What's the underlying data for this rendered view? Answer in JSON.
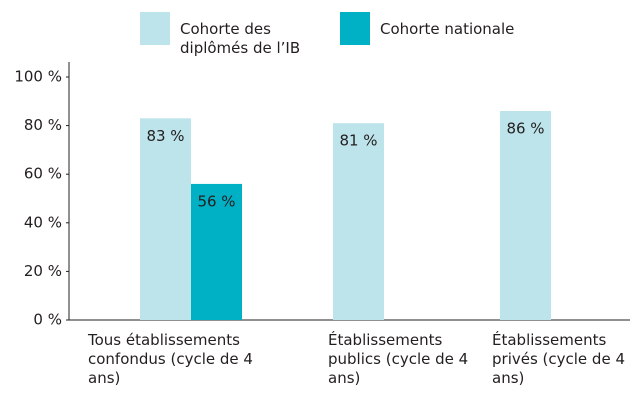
{
  "chart_data": {
    "type": "bar",
    "categories": [
      "Tous établissements confondus (cycle de 4 ans)",
      "Établissements publics (cycle de 4 ans)",
      "Établissements privés (cycle de 4 ans)"
    ],
    "series": [
      {
        "name": "Cohorte des diplômés de l’IB",
        "color": "#bde4ea",
        "values": [
          83,
          81,
          86
        ],
        "value_labels": [
          "83 %",
          "81 %",
          "86 %"
        ]
      },
      {
        "name": "Cohorte nationale",
        "color": "#00b0c4",
        "values": [
          56,
          null,
          null
        ],
        "value_labels": [
          "56 %",
          null,
          null
        ]
      }
    ],
    "ylim": [
      0,
      100
    ],
    "yticks": [
      {
        "value": 0,
        "label": "0 %"
      },
      {
        "value": 20,
        "label": "20 %"
      },
      {
        "value": 40,
        "label": "40 %"
      },
      {
        "value": 60,
        "label": "60 %"
      },
      {
        "value": 80,
        "label": "80 %"
      },
      {
        "value": 100,
        "label": "100 %"
      }
    ],
    "legend": "top"
  }
}
